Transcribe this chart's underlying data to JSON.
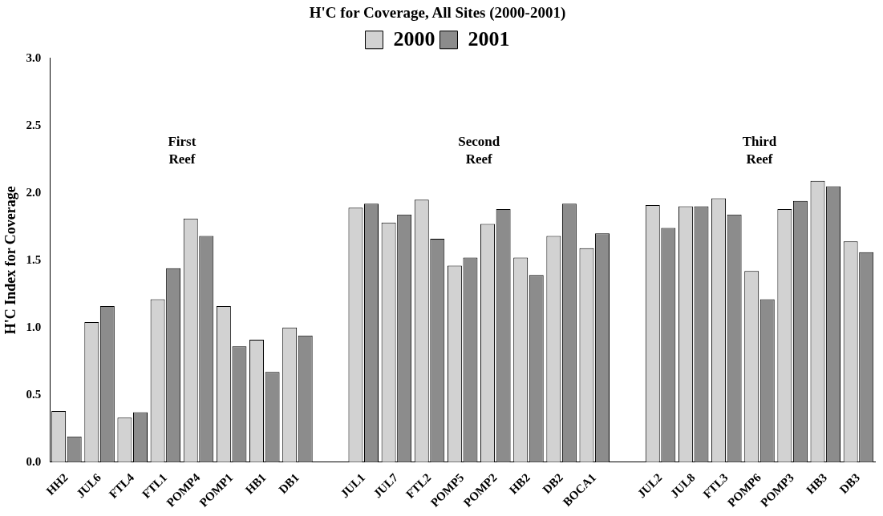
{
  "chart_data": {
    "type": "bar",
    "title": "H'C for Coverage, All Sites (2000-2001)",
    "ylabel": "H'C Index for Coverage",
    "categories": [
      "HH2",
      "JUL6",
      "FTL4",
      "FTL1",
      "POMP4",
      "POMP1",
      "HB1",
      "DB1",
      null,
      "JUL1",
      "JUL7",
      "FTL2",
      "POMP5",
      "POMP2",
      "HB2",
      "DB2",
      "BOCA1",
      null,
      "JUL2",
      "JUL8",
      "FTL3",
      "POMP6",
      "POMP3",
      "HB3",
      "DB3"
    ],
    "series": [
      {
        "name": "2000",
        "color": "#d2d2d2",
        "values": [
          0.38,
          1.04,
          0.33,
          1.21,
          1.81,
          1.16,
          0.91,
          1.0,
          null,
          1.89,
          1.78,
          1.95,
          1.46,
          1.77,
          1.52,
          1.68,
          1.59,
          null,
          1.91,
          1.9,
          1.96,
          1.42,
          1.88,
          2.09,
          1.64
        ]
      },
      {
        "name": "2001",
        "color": "#8c8c8c",
        "values": [
          0.19,
          1.16,
          0.37,
          1.44,
          1.68,
          0.86,
          0.67,
          0.94,
          null,
          1.92,
          1.84,
          1.66,
          1.52,
          1.88,
          1.39,
          1.92,
          1.7,
          null,
          1.74,
          1.9,
          1.84,
          1.21,
          1.94,
          2.05,
          1.56
        ]
      }
    ],
    "ylim": [
      0,
      3
    ],
    "yticks": [
      {
        "value": 0,
        "label": "0.0"
      },
      {
        "value": 0.5,
        "label": "0.5"
      },
      {
        "value": 1,
        "label": "1.0"
      },
      {
        "value": 1.5,
        "label": "1.5"
      },
      {
        "value": 2,
        "label": "2.0"
      },
      {
        "value": 2.5,
        "label": "2.5"
      },
      {
        "value": 3,
        "label": "3.0"
      }
    ],
    "annotations": [
      "First Reef",
      "Second Reef",
      "Third Reef"
    ],
    "legend": "top",
    "grid": false
  }
}
